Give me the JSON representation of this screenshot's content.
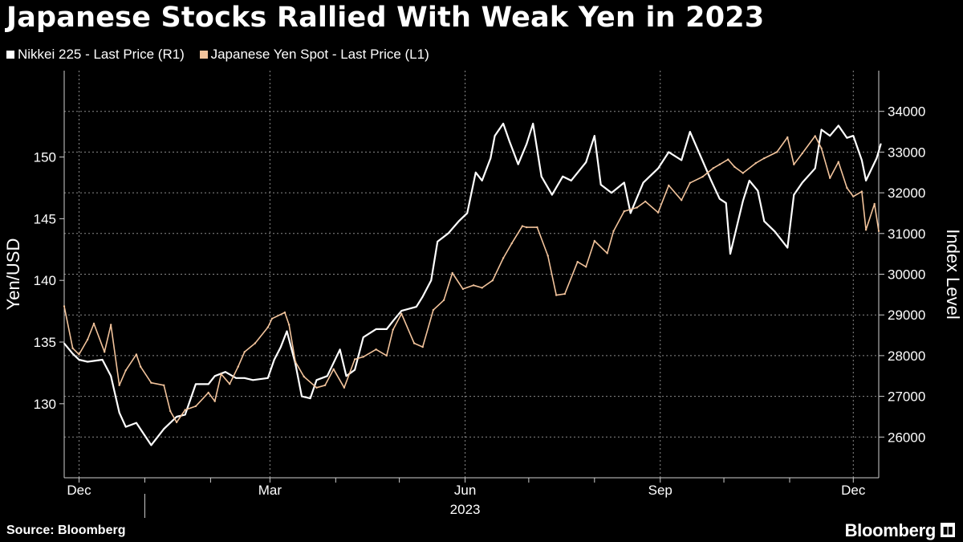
{
  "title": "Japanese Stocks Rallied With Weak Yen in 2023",
  "source": "Source: Bloomberg",
  "brand": "Bloomberg",
  "chart_data": {
    "type": "line",
    "x_start": "2022-11-24",
    "x_end": "2023-12-13",
    "x_ticks": [
      {
        "date": "2022-12-01",
        "label": "Dec"
      },
      {
        "date": "2023-03-01",
        "label": "Mar"
      },
      {
        "date": "2023-06-01",
        "label": "Jun"
      },
      {
        "date": "2023-09-01",
        "label": "Sep"
      },
      {
        "date": "2023-12-01",
        "label": "Dec"
      }
    ],
    "year_label": {
      "date": "2023-06-01",
      "label": "2023"
    },
    "left_axis": {
      "label": "Yen/USD",
      "ylim": [
        124,
        157
      ],
      "ticks": [
        130,
        135,
        140,
        145,
        150
      ]
    },
    "right_axis": {
      "label": "Index Level",
      "ylim": [
        25000,
        35000
      ],
      "ticks": [
        26000,
        27000,
        28000,
        29000,
        30000,
        31000,
        32000,
        33000,
        34000
      ]
    },
    "grid": true,
    "legend_position": "top-left",
    "series": [
      {
        "name": "Nikkei 225 - Last Price (R1)",
        "axis": "right",
        "color": "#ffffff",
        "points": [
          [
            "2022-11-24",
            28300
          ],
          [
            "2022-11-28",
            28050
          ],
          [
            "2022-12-01",
            27900
          ],
          [
            "2022-12-05",
            27850
          ],
          [
            "2022-12-12",
            27900
          ],
          [
            "2022-12-16",
            27500
          ],
          [
            "2022-12-20",
            26600
          ],
          [
            "2022-12-23",
            26250
          ],
          [
            "2022-12-28",
            26350
          ],
          [
            "2023-01-04",
            25800
          ],
          [
            "2023-01-10",
            26200
          ],
          [
            "2023-01-16",
            26500
          ],
          [
            "2023-01-20",
            26550
          ],
          [
            "2023-01-25",
            27300
          ],
          [
            "2023-01-31",
            27300
          ],
          [
            "2023-02-03",
            27500
          ],
          [
            "2023-02-08",
            27600
          ],
          [
            "2023-02-13",
            27450
          ],
          [
            "2023-02-17",
            27450
          ],
          [
            "2023-02-21",
            27400
          ],
          [
            "2023-02-28",
            27450
          ],
          [
            "2023-03-03",
            27900
          ],
          [
            "2023-03-06",
            28200
          ],
          [
            "2023-03-09",
            28600
          ],
          [
            "2023-03-13",
            27800
          ],
          [
            "2023-03-16",
            27000
          ],
          [
            "2023-03-20",
            26950
          ],
          [
            "2023-03-23",
            27400
          ],
          [
            "2023-03-28",
            27500
          ],
          [
            "2023-04-03",
            28150
          ],
          [
            "2023-04-06",
            27500
          ],
          [
            "2023-04-10",
            27650
          ],
          [
            "2023-04-14",
            28450
          ],
          [
            "2023-04-20",
            28650
          ],
          [
            "2023-04-25",
            28650
          ],
          [
            "2023-04-28",
            28850
          ],
          [
            "2023-05-02",
            29100
          ],
          [
            "2023-05-09",
            29200
          ],
          [
            "2023-05-12",
            29450
          ],
          [
            "2023-05-16",
            29850
          ],
          [
            "2023-05-19",
            30800
          ],
          [
            "2023-05-24",
            31000
          ],
          [
            "2023-05-29",
            31300
          ],
          [
            "2023-06-02",
            31500
          ],
          [
            "2023-06-06",
            32500
          ],
          [
            "2023-06-09",
            32300
          ],
          [
            "2023-06-13",
            32850
          ],
          [
            "2023-06-15",
            33400
          ],
          [
            "2023-06-19",
            33700
          ],
          [
            "2023-06-22",
            33250
          ],
          [
            "2023-06-26",
            32700
          ],
          [
            "2023-06-30",
            33200
          ],
          [
            "2023-07-03",
            33700
          ],
          [
            "2023-07-07",
            32400
          ],
          [
            "2023-07-12",
            31950
          ],
          [
            "2023-07-17",
            32400
          ],
          [
            "2023-07-21",
            32300
          ],
          [
            "2023-07-28",
            32750
          ],
          [
            "2023-08-01",
            33400
          ],
          [
            "2023-08-04",
            32200
          ],
          [
            "2023-08-09",
            32000
          ],
          [
            "2023-08-15",
            32250
          ],
          [
            "2023-08-18",
            31500
          ],
          [
            "2023-08-24",
            32250
          ],
          [
            "2023-08-31",
            32600
          ],
          [
            "2023-09-05",
            33000
          ],
          [
            "2023-09-11",
            32800
          ],
          [
            "2023-09-15",
            33500
          ],
          [
            "2023-09-20",
            32900
          ],
          [
            "2023-09-25",
            32300
          ],
          [
            "2023-09-29",
            31850
          ],
          [
            "2023-10-02",
            31750
          ],
          [
            "2023-10-04",
            30500
          ],
          [
            "2023-10-10",
            31800
          ],
          [
            "2023-10-13",
            32300
          ],
          [
            "2023-10-17",
            32050
          ],
          [
            "2023-10-20",
            31300
          ],
          [
            "2023-10-25",
            31050
          ],
          [
            "2023-10-31",
            30650
          ],
          [
            "2023-11-03",
            31950
          ],
          [
            "2023-11-07",
            32250
          ],
          [
            "2023-11-13",
            32600
          ],
          [
            "2023-11-16",
            33550
          ],
          [
            "2023-11-20",
            33400
          ],
          [
            "2023-11-24",
            33650
          ],
          [
            "2023-11-28",
            33350
          ],
          [
            "2023-12-01",
            33400
          ],
          [
            "2023-12-05",
            32800
          ],
          [
            "2023-12-07",
            32300
          ],
          [
            "2023-12-12",
            32850
          ],
          [
            "2023-12-14",
            33200
          ]
        ]
      },
      {
        "name": "Japanese Yen Spot - Last Price (L1)",
        "axis": "left",
        "color": "#f2c39b",
        "points": [
          [
            "2022-11-24",
            137.9
          ],
          [
            "2022-11-28",
            134.5
          ],
          [
            "2022-12-01",
            134.0
          ],
          [
            "2022-12-05",
            135.2
          ],
          [
            "2022-12-08",
            136.5
          ],
          [
            "2022-12-13",
            134.2
          ],
          [
            "2022-12-16",
            136.4
          ],
          [
            "2022-12-20",
            131.5
          ],
          [
            "2022-12-23",
            132.7
          ],
          [
            "2022-12-28",
            134.0
          ],
          [
            "2022-12-30",
            133.0
          ],
          [
            "2023-01-04",
            131.7
          ],
          [
            "2023-01-10",
            131.5
          ],
          [
            "2023-01-13",
            129.4
          ],
          [
            "2023-01-16",
            128.5
          ],
          [
            "2023-01-20",
            129.5
          ],
          [
            "2023-01-25",
            129.8
          ],
          [
            "2023-01-31",
            130.9
          ],
          [
            "2023-02-03",
            130.2
          ],
          [
            "2023-02-06",
            132.4
          ],
          [
            "2023-02-10",
            131.6
          ],
          [
            "2023-02-14",
            133.0
          ],
          [
            "2023-02-17",
            134.2
          ],
          [
            "2023-02-22",
            134.9
          ],
          [
            "2023-02-28",
            136.2
          ],
          [
            "2023-03-02",
            136.9
          ],
          [
            "2023-03-08",
            137.4
          ],
          [
            "2023-03-10",
            136.4
          ],
          [
            "2023-03-13",
            133.4
          ],
          [
            "2023-03-17",
            132.2
          ],
          [
            "2023-03-23",
            131.3
          ],
          [
            "2023-03-27",
            131.5
          ],
          [
            "2023-03-31",
            132.8
          ],
          [
            "2023-04-05",
            131.3
          ],
          [
            "2023-04-10",
            133.6
          ],
          [
            "2023-04-14",
            133.8
          ],
          [
            "2023-04-20",
            134.4
          ],
          [
            "2023-04-25",
            133.9
          ],
          [
            "2023-04-28",
            136.0
          ],
          [
            "2023-05-02",
            137.3
          ],
          [
            "2023-05-08",
            134.9
          ],
          [
            "2023-05-12",
            134.6
          ],
          [
            "2023-05-17",
            137.6
          ],
          [
            "2023-05-22",
            138.4
          ],
          [
            "2023-05-26",
            140.6
          ],
          [
            "2023-05-31",
            139.3
          ],
          [
            "2023-06-05",
            139.6
          ],
          [
            "2023-06-09",
            139.4
          ],
          [
            "2023-06-14",
            140.0
          ],
          [
            "2023-06-19",
            141.8
          ],
          [
            "2023-06-23",
            143.0
          ],
          [
            "2023-06-28",
            144.4
          ],
          [
            "2023-06-30",
            144.3
          ],
          [
            "2023-07-05",
            144.3
          ],
          [
            "2023-07-10",
            142.0
          ],
          [
            "2023-07-14",
            138.8
          ],
          [
            "2023-07-18",
            138.9
          ],
          [
            "2023-07-24",
            141.5
          ],
          [
            "2023-07-28",
            141.1
          ],
          [
            "2023-08-01",
            143.2
          ],
          [
            "2023-08-07",
            142.2
          ],
          [
            "2023-08-10",
            144.0
          ],
          [
            "2023-08-15",
            145.6
          ],
          [
            "2023-08-21",
            145.9
          ],
          [
            "2023-08-25",
            146.4
          ],
          [
            "2023-08-31",
            145.5
          ],
          [
            "2023-09-05",
            147.7
          ],
          [
            "2023-09-11",
            146.5
          ],
          [
            "2023-09-15",
            147.9
          ],
          [
            "2023-09-21",
            148.4
          ],
          [
            "2023-09-26",
            149.1
          ],
          [
            "2023-09-29",
            149.4
          ],
          [
            "2023-10-03",
            149.8
          ],
          [
            "2023-10-06",
            149.2
          ],
          [
            "2023-10-10",
            148.7
          ],
          [
            "2023-10-16",
            149.5
          ],
          [
            "2023-10-20",
            149.9
          ],
          [
            "2023-10-26",
            150.4
          ],
          [
            "2023-10-31",
            151.6
          ],
          [
            "2023-11-03",
            149.4
          ],
          [
            "2023-11-07",
            150.3
          ],
          [
            "2023-11-13",
            151.7
          ],
          [
            "2023-11-16",
            150.7
          ],
          [
            "2023-11-20",
            148.3
          ],
          [
            "2023-11-24",
            149.6
          ],
          [
            "2023-11-28",
            147.5
          ],
          [
            "2023-12-01",
            146.8
          ],
          [
            "2023-12-05",
            147.2
          ],
          [
            "2023-12-07",
            144.1
          ],
          [
            "2023-12-11",
            146.2
          ],
          [
            "2023-12-13",
            144.0
          ]
        ]
      }
    ]
  }
}
